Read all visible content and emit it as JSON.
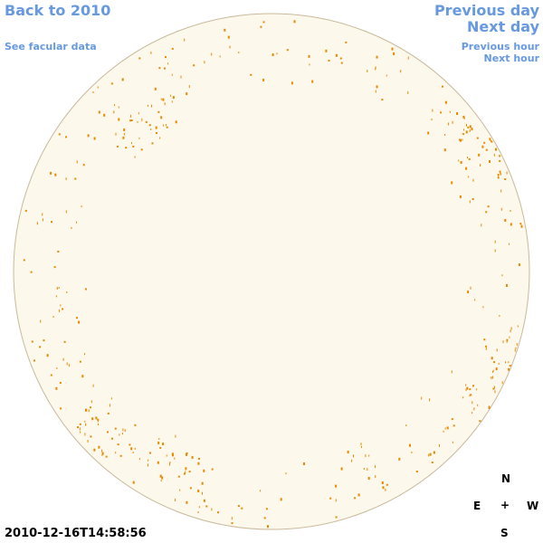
{
  "header": {
    "back_link": "Back to 2010",
    "facular_link": "See facular data",
    "previous_day": "Previous day",
    "next_day": "Next day",
    "previous_hour": "Previous hour",
    "next_hour": "Next hour"
  },
  "timestamp": "2010-12-16T14:58:56",
  "compass": {
    "north": "N",
    "east": "E",
    "center": "+",
    "west": "W",
    "south": "S"
  }
}
